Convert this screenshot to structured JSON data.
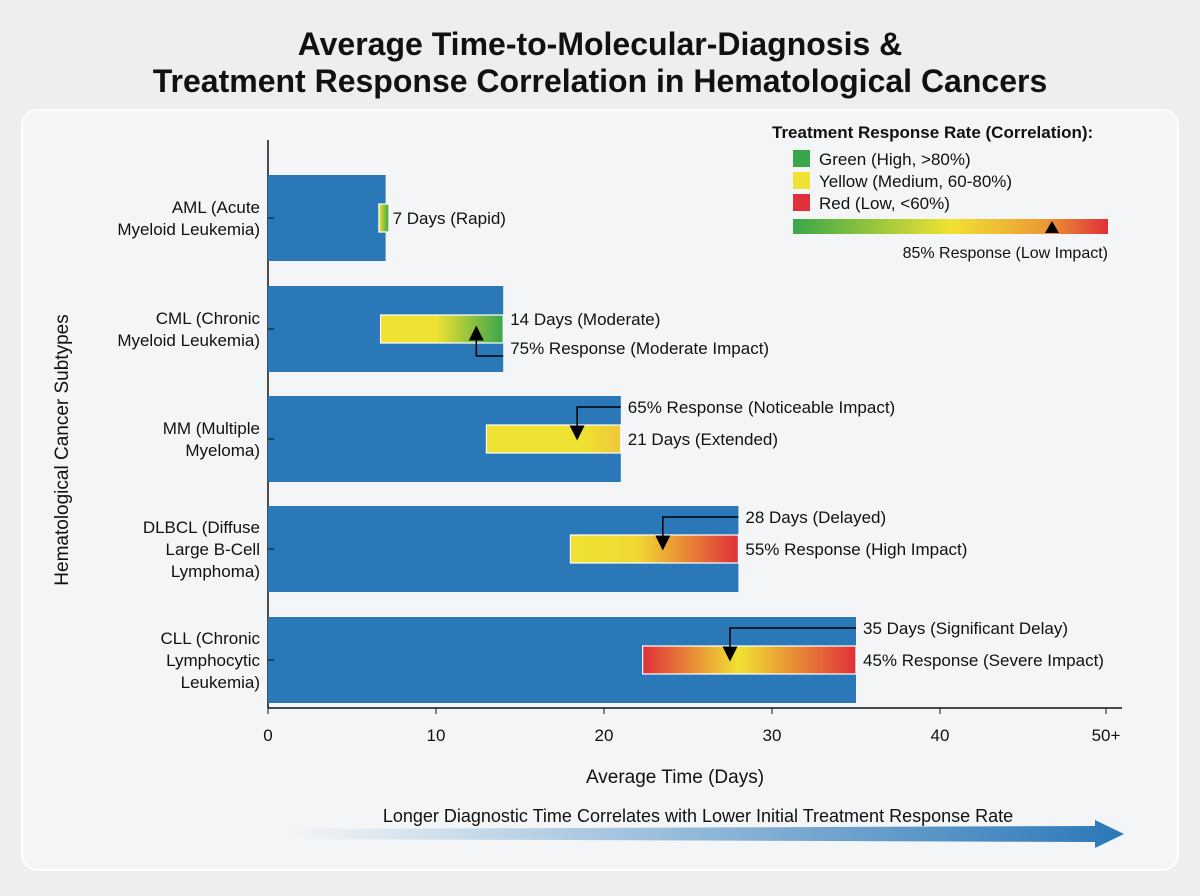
{
  "chart_data": {
    "type": "bar",
    "orientation": "horizontal",
    "title": [
      "Average Time-to-Molecular-Diagnosis &",
      "Treatment Response Correlation in Hematological Cancers"
    ],
    "xlabel": "Average Time (Days)",
    "ylabel": "Hematological Cancer Subtypes",
    "xlim": [
      0,
      50
    ],
    "xticks": [
      "0",
      "10",
      "20",
      "30",
      "40",
      "50+"
    ],
    "bar_color": "#2b78b8",
    "categories": [
      [
        "AML (Acute",
        "Myeloid Leukemia)"
      ],
      [
        "CML (Chronic",
        "Myeloid Leukemia)"
      ],
      [
        "MM (Multiple",
        "Myeloma)"
      ],
      [
        "DLBCL (Diffuse",
        "Large B-Cell",
        "Lymphoma)"
      ],
      [
        "CLL (Chronic",
        "Lymphocytic",
        "Leukemia)"
      ]
    ],
    "values": [
      7,
      14,
      21,
      28,
      35
    ],
    "day_labels": [
      "7 Days (Rapid)",
      "14 Days (Moderate)",
      "21 Days (Extended)",
      "28 Days (Delayed)",
      "35 Days (Significant Delay)"
    ],
    "response_labels": [
      "",
      "75% Response (Moderate Impact)",
      "65% Response (Noticeable Impact)",
      "55% Response (High Impact)",
      "45% Response (Severe Impact)"
    ],
    "response_rates": [
      85,
      75,
      65,
      55,
      45
    ],
    "legend": {
      "title": "Treatment Response Rate (Correlation):",
      "placement": "top-right",
      "items": [
        {
          "label": "Green (High, >80%)",
          "color": "#3aa64a"
        },
        {
          "label": "Yellow (Medium, 60-80%)",
          "color": "#f0e232"
        },
        {
          "label": "Red (Low, <60%)",
          "color": "#e0303a"
        }
      ],
      "scale_label": "85% Response (Low Impact)"
    },
    "footer": "Longer Diagnostic Time Correlates with Lower Initial Treatment Response Rate",
    "grid": false
  }
}
